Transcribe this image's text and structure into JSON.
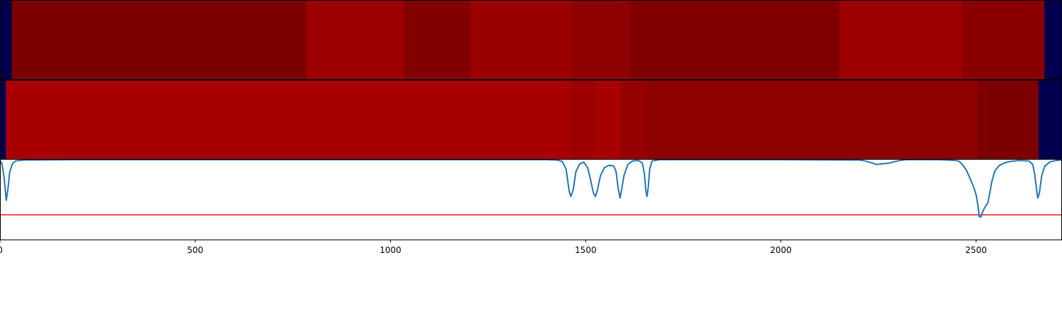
{
  "chart_data": [
    {
      "type": "heatmap",
      "colormap": "seismic",
      "xlim": [
        0,
        2720
      ],
      "segments": [
        {
          "start": 0,
          "end": 30,
          "color": "#00004f"
        },
        {
          "start": 30,
          "end": 785,
          "color": "#7d0000"
        },
        {
          "start": 785,
          "end": 1035,
          "color": "#9d0000"
        },
        {
          "start": 1035,
          "end": 1205,
          "color": "#830000"
        },
        {
          "start": 1205,
          "end": 1465,
          "color": "#9b0000"
        },
        {
          "start": 1465,
          "end": 1615,
          "color": "#8f0000"
        },
        {
          "start": 1615,
          "end": 2150,
          "color": "#800000"
        },
        {
          "start": 2150,
          "end": 2465,
          "color": "#9d0000"
        },
        {
          "start": 2465,
          "end": 2675,
          "color": "#8a0000"
        },
        {
          "start": 2675,
          "end": 2720,
          "color": "#00004f"
        }
      ]
    },
    {
      "type": "heatmap",
      "colormap": "seismic",
      "xlim": [
        0,
        2720
      ],
      "segments": [
        {
          "start": 0,
          "end": 15,
          "color": "#00004f"
        },
        {
          "start": 15,
          "end": 1460,
          "color": "#a80000"
        },
        {
          "start": 1460,
          "end": 1525,
          "color": "#9d0000"
        },
        {
          "start": 1525,
          "end": 1590,
          "color": "#a60000"
        },
        {
          "start": 1590,
          "end": 1655,
          "color": "#950000"
        },
        {
          "start": 1655,
          "end": 2505,
          "color": "#8d0000"
        },
        {
          "start": 2505,
          "end": 2660,
          "color": "#7d0000"
        },
        {
          "start": 2660,
          "end": 2720,
          "color": "#00004f"
        }
      ]
    },
    {
      "type": "line",
      "xlim": [
        0,
        2720
      ],
      "ylim": [
        0,
        1
      ],
      "x_ticks": [
        0,
        500,
        1000,
        1500,
        2000,
        2500
      ],
      "x_tick_labels": [
        "0",
        "500",
        "1000",
        "1500",
        "2000",
        "2500"
      ],
      "threshold": {
        "y": 0.31,
        "color": "#e41a1c"
      },
      "series": [
        {
          "color": "#1f77b4",
          "points": [
            [
              0,
              0.99
            ],
            [
              5,
              0.95
            ],
            [
              10,
              0.8
            ],
            [
              16,
              0.49
            ],
            [
              20,
              0.62
            ],
            [
              25,
              0.85
            ],
            [
              32,
              0.95
            ],
            [
              40,
              0.985
            ],
            [
              60,
              0.995
            ],
            [
              200,
              1.0
            ],
            [
              600,
              1.0
            ],
            [
              1000,
              1.0
            ],
            [
              1400,
              1.0
            ],
            [
              1425,
              0.995
            ],
            [
              1440,
              0.98
            ],
            [
              1450,
              0.88
            ],
            [
              1458,
              0.6
            ],
            [
              1462,
              0.54
            ],
            [
              1468,
              0.62
            ],
            [
              1475,
              0.85
            ],
            [
              1485,
              0.95
            ],
            [
              1495,
              0.97
            ],
            [
              1505,
              0.9
            ],
            [
              1512,
              0.76
            ],
            [
              1520,
              0.58
            ],
            [
              1525,
              0.54
            ],
            [
              1530,
              0.62
            ],
            [
              1538,
              0.8
            ],
            [
              1548,
              0.9
            ],
            [
              1560,
              0.93
            ],
            [
              1572,
              0.92
            ],
            [
              1578,
              0.85
            ],
            [
              1583,
              0.65
            ],
            [
              1588,
              0.52
            ],
            [
              1592,
              0.62
            ],
            [
              1598,
              0.8
            ],
            [
              1608,
              0.94
            ],
            [
              1620,
              0.985
            ],
            [
              1635,
              0.99
            ],
            [
              1645,
              0.96
            ],
            [
              1650,
              0.84
            ],
            [
              1654,
              0.62
            ],
            [
              1657,
              0.54
            ],
            [
              1660,
              0.64
            ],
            [
              1664,
              0.88
            ],
            [
              1670,
              0.985
            ],
            [
              1690,
              1.0
            ],
            [
              1800,
              1.0
            ],
            [
              2000,
              1.0
            ],
            [
              2200,
              0.995
            ],
            [
              2215,
              0.985
            ],
            [
              2230,
              0.965
            ],
            [
              2245,
              0.94
            ],
            [
              2260,
              0.95
            ],
            [
              2275,
              0.955
            ],
            [
              2290,
              0.975
            ],
            [
              2305,
              0.99
            ],
            [
              2320,
              1.0
            ],
            [
              2400,
              1.0
            ],
            [
              2430,
              0.995
            ],
            [
              2455,
              0.985
            ],
            [
              2465,
              0.94
            ],
            [
              2475,
              0.87
            ],
            [
              2485,
              0.76
            ],
            [
              2495,
              0.64
            ],
            [
              2500,
              0.56
            ],
            [
              2505,
              0.42
            ],
            [
              2508,
              0.29
            ],
            [
              2512,
              0.28
            ],
            [
              2516,
              0.34
            ],
            [
              2522,
              0.4
            ],
            [
              2530,
              0.46
            ],
            [
              2535,
              0.58
            ],
            [
              2540,
              0.72
            ],
            [
              2548,
              0.86
            ],
            [
              2560,
              0.93
            ],
            [
              2575,
              0.965
            ],
            [
              2590,
              0.98
            ],
            [
              2610,
              0.99
            ],
            [
              2635,
              0.985
            ],
            [
              2645,
              0.94
            ],
            [
              2650,
              0.82
            ],
            [
              2655,
              0.62
            ],
            [
              2658,
              0.52
            ],
            [
              2662,
              0.58
            ],
            [
              2668,
              0.8
            ],
            [
              2676,
              0.92
            ],
            [
              2690,
              0.975
            ],
            [
              2705,
              0.99
            ],
            [
              2720,
              0.995
            ]
          ]
        }
      ]
    }
  ]
}
